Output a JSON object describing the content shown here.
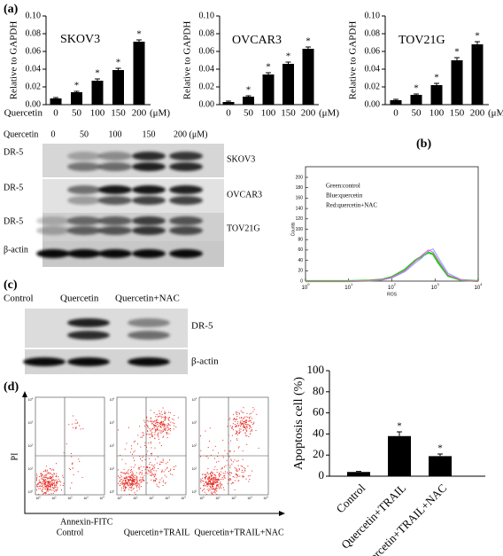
{
  "panels": [
    "(a)",
    "(b)",
    "(c)",
    "(d)"
  ],
  "chart_data": [
    {
      "type": "bar",
      "title": "SKOV3",
      "ylabel": "Relative to GAPDH",
      "x_prefix": "Quercetin",
      "x_unit": "(μM)",
      "categories": [
        "0",
        "50",
        "100",
        "150",
        "200"
      ],
      "values": [
        0.007,
        0.014,
        0.027,
        0.039,
        0.071
      ],
      "errors": [
        0.001,
        0.001,
        0.002,
        0.002,
        0.002
      ],
      "significance": [
        null,
        "*",
        "*",
        "*",
        "*"
      ],
      "color": "#000000",
      "ylim": [
        0,
        0.1
      ],
      "yticks": [
        {
          "value": 0,
          "label": "0.00"
        },
        0.02,
        0.04,
        0.06,
        0.08,
        {
          "value": 0.1,
          "label": "0.10"
        }
      ]
    },
    {
      "type": "bar",
      "title": "OVCAR3",
      "ylabel": "Relative to GAPDH",
      "x_unit": "(μM)",
      "categories": [
        "0",
        "50",
        "100",
        "150",
        "200"
      ],
      "values": [
        0.003,
        0.009,
        0.034,
        0.046,
        0.063
      ],
      "errors": [
        0.001,
        0.001,
        0.002,
        0.002,
        0.002
      ],
      "significance": [
        null,
        "*",
        "*",
        "*",
        "*"
      ],
      "color": "#000000",
      "ylim": [
        0,
        0.1
      ],
      "yticks": [
        {
          "value": 0,
          "label": "0.00"
        },
        0.02,
        0.04,
        0.06,
        0.08,
        {
          "value": 0.1,
          "label": "0.10"
        }
      ]
    },
    {
      "type": "bar",
      "title": "TOV21G",
      "ylabel": "Relative to GAPDH",
      "x_unit": "(μM)",
      "categories": [
        "0",
        "50",
        "100",
        "150",
        "200"
      ],
      "values": [
        0.005,
        0.011,
        0.022,
        0.05,
        0.068
      ],
      "errors": [
        0.001,
        0.001,
        0.002,
        0.003,
        0.003
      ],
      "significance": [
        null,
        "*",
        "*",
        "*",
        "*"
      ],
      "color": "#000000",
      "ylim": [
        0,
        0.1
      ],
      "yticks": [
        {
          "value": 0,
          "label": "0.00"
        },
        0.02,
        0.04,
        0.06,
        0.08,
        {
          "value": 0.1,
          "label": "0.10"
        }
      ]
    },
    {
      "type": "bar",
      "ylabel": "Apoptosis cell (%)",
      "categories": [
        "Control",
        "Quercetin+TRAIL",
        "Quercetin+TRAIL+NAC"
      ],
      "values": [
        4,
        38,
        19
      ],
      "errors": [
        0.5,
        4,
        2
      ],
      "significance": [
        null,
        "*",
        "*"
      ],
      "color": "#000000",
      "ylim": [
        0,
        100
      ],
      "yticks": [
        0,
        20,
        40,
        60,
        80,
        100
      ]
    },
    {
      "type": "line",
      "xlabel": "ROS",
      "ylabel": "Counts",
      "xscale": "log",
      "x": [
        1,
        10,
        30,
        60,
        100,
        200,
        350,
        500,
        700,
        900,
        1200,
        2000,
        4000,
        10000
      ],
      "series": [
        {
          "name": "Green:control",
          "color": "#22cc22",
          "values": [
            0,
            0,
            1,
            3,
            8,
            22,
            40,
            48,
            55,
            52,
            35,
            10,
            2,
            0
          ]
        },
        {
          "name": "Blue:quercetin",
          "color": "#7fa8ff",
          "values": [
            0,
            0,
            1,
            2,
            6,
            18,
            35,
            45,
            58,
            62,
            45,
            15,
            3,
            0
          ]
        },
        {
          "name": "Red:quercetin+NAC",
          "color": "#ff55cc",
          "values": [
            0,
            0,
            1,
            3,
            7,
            20,
            38,
            50,
            60,
            56,
            40,
            12,
            2,
            0
          ]
        }
      ],
      "xlim": [
        1,
        10000
      ],
      "xticks": [
        {
          "value": 1,
          "label": "10",
          "sup": "0"
        },
        {
          "value": 10,
          "label": "10",
          "sup": "1"
        },
        {
          "value": 100,
          "label": "10",
          "sup": "2"
        },
        {
          "value": 1000,
          "label": "10",
          "sup": "3"
        },
        {
          "value": 10000,
          "label": "10",
          "sup": "4"
        }
      ],
      "ylim": [
        0,
        200
      ],
      "yticks": [
        0,
        20,
        40,
        60,
        80,
        100,
        120,
        140,
        160,
        180,
        200
      ]
    }
  ],
  "blot_a": {
    "treatment": "Quercetin",
    "doses": [
      "0",
      "50",
      "100",
      "150",
      "200 (μM)"
    ],
    "rows": [
      {
        "protein": "DR-5",
        "cell_line": "SKOV3"
      },
      {
        "protein": "DR-5",
        "cell_line": "OVCAR3"
      },
      {
        "protein": "DR-5",
        "cell_line": "TOV21G"
      },
      {
        "protein": "β-actin"
      }
    ]
  },
  "blot_c": {
    "lanes": [
      "Control",
      "Quercetin",
      "Quercetin+NAC"
    ],
    "rows": [
      "DR-5",
      "β-actin"
    ]
  },
  "flow_cytometry": {
    "ylabel": "PI",
    "xlabel": "Annexin-FITC",
    "tick_base": "10",
    "tick_exponents": [
      "0",
      "1",
      "2",
      "3",
      "4"
    ],
    "samples": [
      "Control",
      "Quercetin+TRAIL",
      "Quercetin+TRAIL+NAC"
    ]
  }
}
